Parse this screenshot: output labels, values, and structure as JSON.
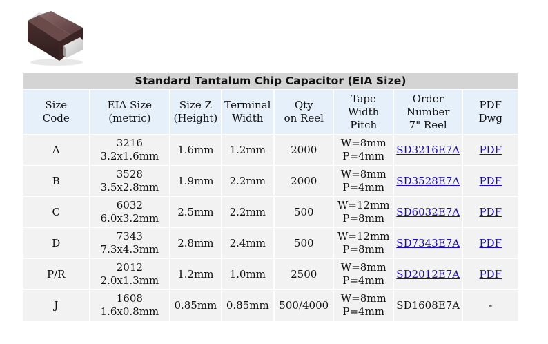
{
  "table": {
    "title": "Standard Tantalum Chip Capacitor (EIA Size)",
    "headers": [
      [
        "Size",
        "Code"
      ],
      [
        "EIA Size",
        "(metric)"
      ],
      [
        "Size Z",
        "(Height)"
      ],
      [
        "Terminal",
        "Width"
      ],
      [
        "Qty",
        "on Reel"
      ],
      [
        "Tape",
        "Width",
        "Pitch"
      ],
      [
        "Order",
        "Number",
        "7\" Reel"
      ],
      [
        "PDF",
        "Dwg"
      ]
    ],
    "rows": [
      {
        "code": "A",
        "eia": "3216",
        "metric": "3.2x1.6mm",
        "height": "1.6mm",
        "terminal": "1.2mm",
        "qty": "2000",
        "tape_w": "W=8mm",
        "tape_p": "P=4mm",
        "order": "SD3216E7A",
        "pdf": "PDF"
      },
      {
        "code": "B",
        "eia": "3528",
        "metric": "3.5x2.8mm",
        "height": "1.9mm",
        "terminal": "2.2mm",
        "qty": "2000",
        "tape_w": "W=8mm",
        "tape_p": "P=4mm",
        "order": "SD3528E7A",
        "pdf": "PDF"
      },
      {
        "code": "C",
        "eia": "6032",
        "metric": "6.0x3.2mm",
        "height": "2.5mm",
        "terminal": "2.2mm",
        "qty": "500",
        "tape_w": "W=12mm",
        "tape_p": "P=8mm",
        "order": "SD6032E7A",
        "pdf": "PDF"
      },
      {
        "code": "D",
        "eia": "7343",
        "metric": "7.3x4.3mm",
        "height": "2.8mm",
        "terminal": "2.4mm",
        "qty": "500",
        "tape_w": "W=12mm",
        "tape_p": "P=8mm",
        "order": "SD7343E7A",
        "pdf": "PDF"
      },
      {
        "code": "P/R",
        "eia": "2012",
        "metric": "2.0x1.3mm",
        "height": "1.2mm",
        "terminal": "1.0mm",
        "qty": "2500",
        "tape_w": "W=8mm",
        "tape_p": "P=4mm",
        "order": "SD2012E7A",
        "pdf": "PDF"
      },
      {
        "code": "J",
        "eia": "1608",
        "metric": "1.6x0.8mm",
        "height": "0.85mm",
        "terminal": "0.85mm",
        "qty": "500/4000",
        "tape_w": "W=8mm",
        "tape_p": "P=4mm",
        "order": "SD1608E7A",
        "pdf": "-"
      }
    ]
  },
  "colors": {
    "title_bg": "#d4d4d4",
    "header_bg": "#e6f0fa",
    "row_bg": "#f2f2f2",
    "link": "#1a0dab"
  }
}
